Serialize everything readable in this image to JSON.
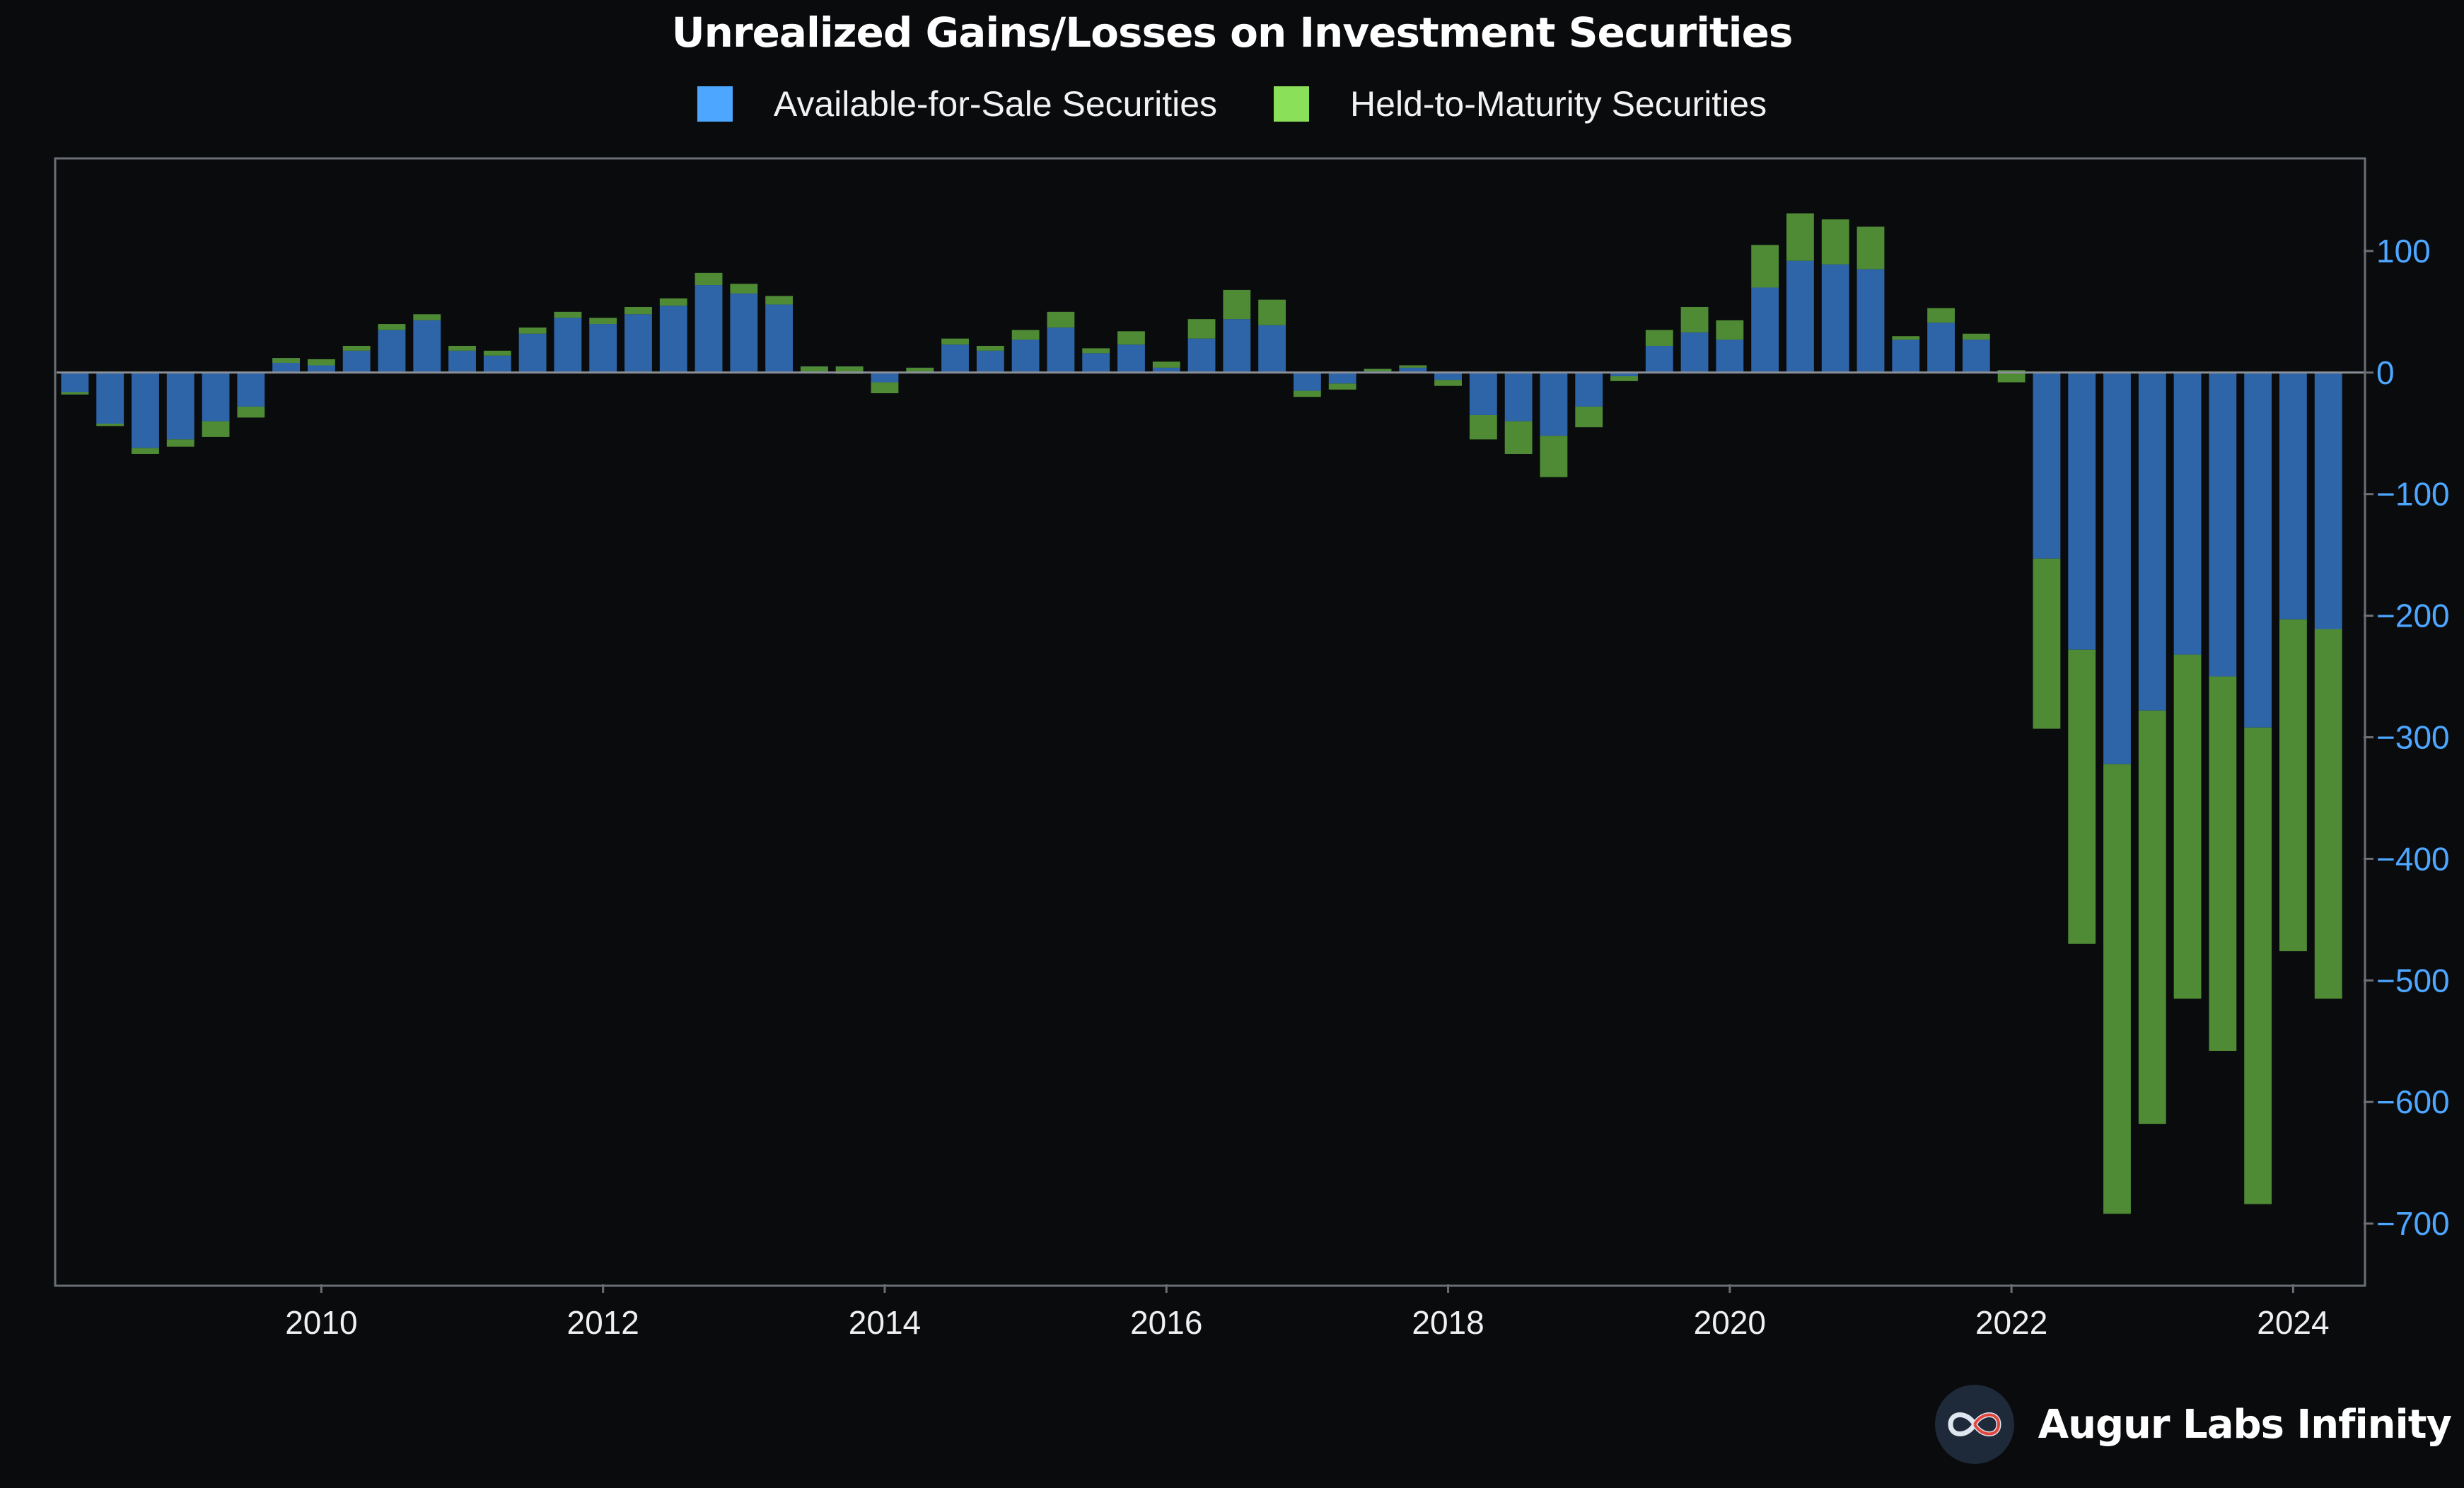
{
  "chart_data": {
    "type": "bar",
    "stacked": true,
    "title": "Unrealized Gains/Losses on Investment Securities",
    "xlabel": "",
    "ylabel": "",
    "x_ticks": [
      "2010",
      "2012",
      "2014",
      "2016",
      "2018",
      "2020",
      "2022",
      "2024"
    ],
    "y_ticks": [
      "100",
      "0",
      "−100",
      "−200",
      "−300",
      "−400",
      "−500",
      "−600",
      "−700"
    ],
    "ylim": [
      -750,
      175
    ],
    "xlim": [
      2008.12,
      2024.5
    ],
    "y_axis_side": "right",
    "legend_position": "top-center",
    "grid": false,
    "x": [
      2008.25,
      2008.5,
      2008.75,
      2009.0,
      2009.25,
      2009.5,
      2009.75,
      2010.0,
      2010.25,
      2010.5,
      2010.75,
      2011.0,
      2011.25,
      2011.5,
      2011.75,
      2012.0,
      2012.25,
      2012.5,
      2012.75,
      2013.0,
      2013.25,
      2013.5,
      2013.75,
      2014.0,
      2014.25,
      2014.5,
      2014.75,
      2015.0,
      2015.25,
      2015.5,
      2015.75,
      2016.0,
      2016.25,
      2016.5,
      2016.75,
      2017.0,
      2017.25,
      2017.5,
      2017.75,
      2018.0,
      2018.25,
      2018.5,
      2018.75,
      2019.0,
      2019.25,
      2019.5,
      2019.75,
      2020.0,
      2020.25,
      2020.5,
      2020.75,
      2021.0,
      2021.25,
      2021.5,
      2021.75,
      2022.0,
      2022.25,
      2022.5,
      2022.75,
      2023.0,
      2023.25,
      2023.5,
      2023.75,
      2024.0,
      2024.25
    ],
    "series": [
      {
        "name": "Available-for-Sale Securities",
        "color": "#4da6ff",
        "values": [
          -18,
          -42,
          -62,
          -55,
          -40,
          -28,
          12,
          6,
          18,
          35,
          43,
          18,
          14,
          32,
          45,
          40,
          48,
          55,
          72,
          65,
          56,
          5,
          5,
          -8,
          4,
          23,
          18,
          27,
          37,
          16,
          23,
          4,
          28,
          44,
          39,
          -15,
          -9,
          3,
          4,
          -6,
          -35,
          -40,
          -52,
          -28,
          -3,
          22,
          33,
          27,
          70,
          92,
          89,
          85,
          27,
          41,
          27,
          2,
          -153,
          -228,
          -322,
          -278,
          -232,
          -250,
          -292,
          -203,
          -211
        ]
      },
      {
        "name": "Held-to-Maturity Securities",
        "color": "#8be05a",
        "values": [
          2,
          -2,
          -5,
          -6,
          -13,
          -9,
          -4,
          5,
          4,
          5,
          5,
          4,
          4,
          5,
          5,
          5,
          6,
          6,
          10,
          8,
          7,
          -5,
          -6,
          -9,
          -4,
          5,
          4,
          8,
          13,
          4,
          11,
          5,
          16,
          24,
          21,
          -5,
          -5,
          -2,
          2,
          -5,
          -20,
          -27,
          -34,
          -17,
          -4,
          13,
          21,
          16,
          35,
          39,
          37,
          35,
          3,
          12,
          5,
          -10,
          -140,
          -242,
          -370,
          -340,
          -283,
          -308,
          -392,
          -273,
          -304
        ]
      }
    ]
  },
  "brand": {
    "name": "Augur Labs Infinity",
    "icon": "infinity-icon"
  }
}
